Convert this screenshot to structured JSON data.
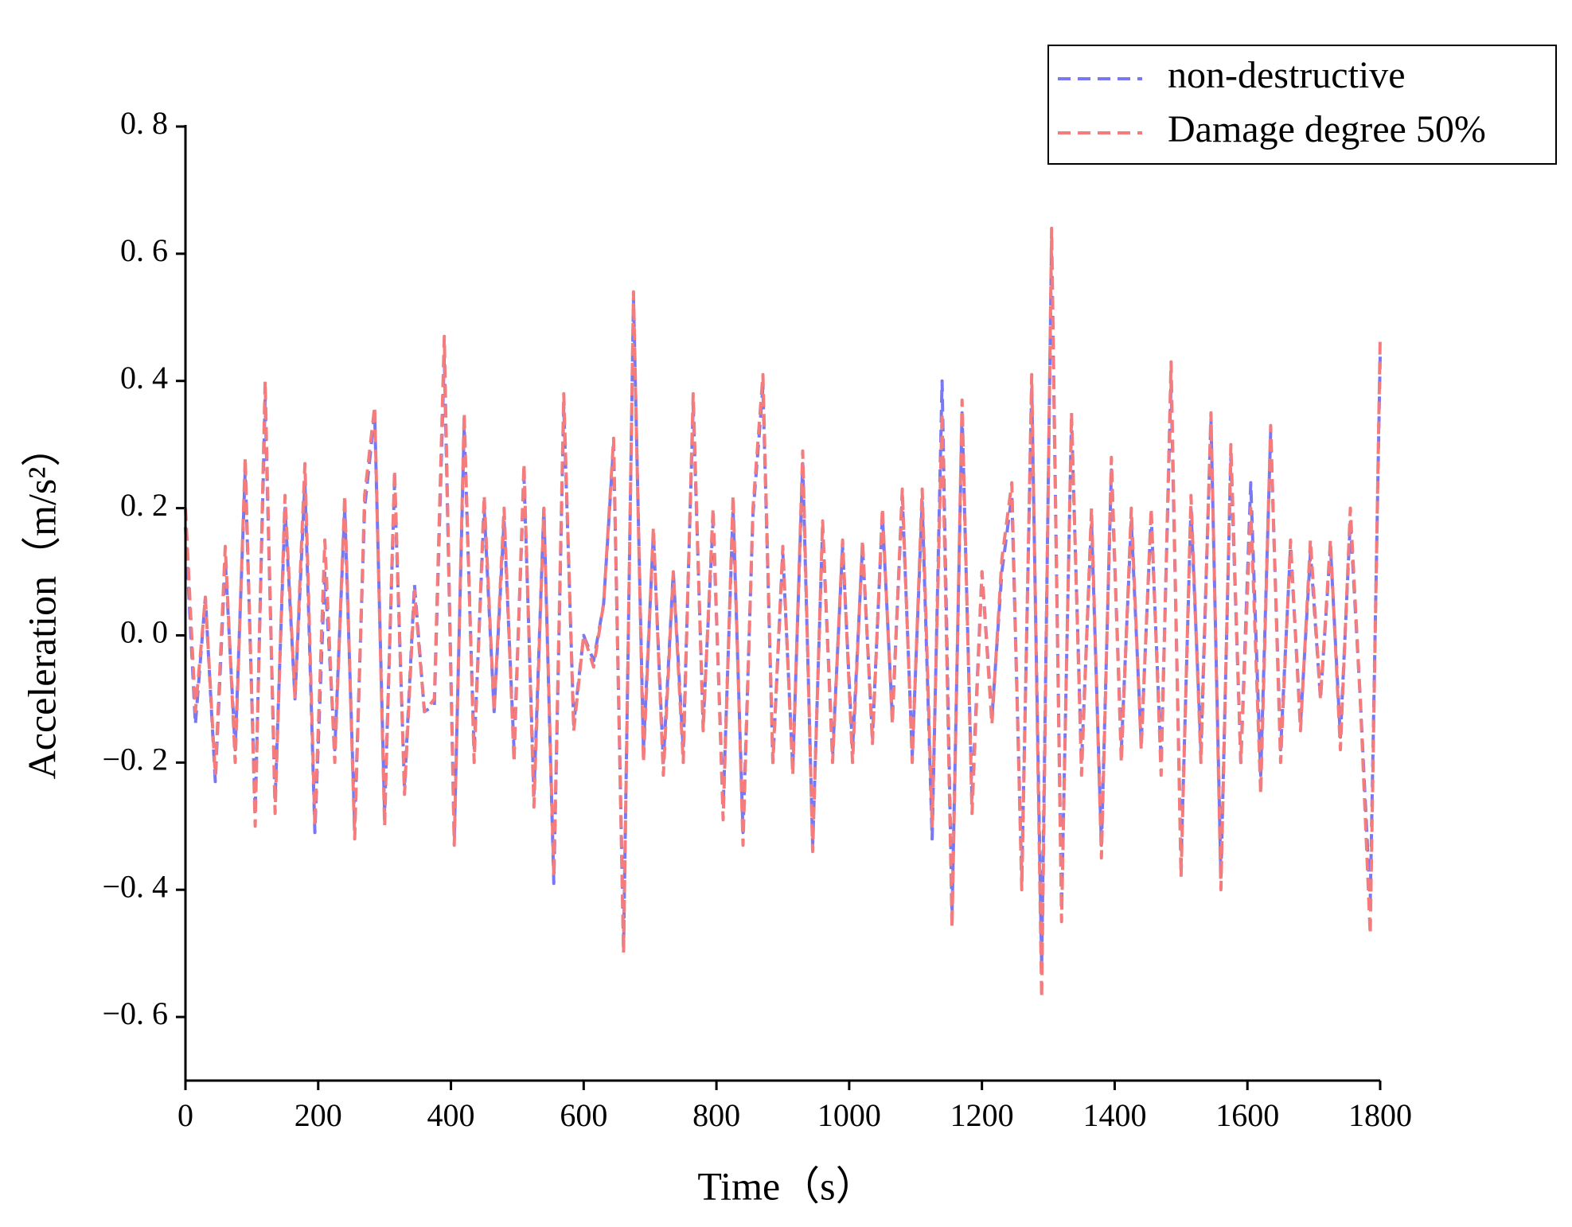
{
  "chart_data": {
    "type": "line",
    "xlabel": "Time（s）",
    "ylabel": "Acceleration（m/s²）",
    "x": [
      0,
      15,
      30,
      45,
      60,
      75,
      90,
      105,
      120,
      135,
      150,
      165,
      180,
      195,
      210,
      225,
      240,
      255,
      270,
      285,
      300,
      315,
      330,
      345,
      360,
      375,
      390,
      405,
      420,
      435,
      450,
      465,
      480,
      495,
      510,
      525,
      540,
      555,
      570,
      585,
      600,
      615,
      630,
      645,
      660,
      675,
      690,
      705,
      720,
      735,
      750,
      765,
      780,
      795,
      810,
      825,
      840,
      855,
      870,
      885,
      900,
      915,
      930,
      945,
      960,
      975,
      990,
      1005,
      1020,
      1035,
      1050,
      1065,
      1080,
      1095,
      1110,
      1125,
      1140,
      1155,
      1170,
      1185,
      1200,
      1215,
      1230,
      1245,
      1260,
      1275,
      1290,
      1305,
      1320,
      1335,
      1350,
      1365,
      1380,
      1395,
      1410,
      1425,
      1440,
      1455,
      1470,
      1485,
      1500,
      1515,
      1530,
      1545,
      1560,
      1575,
      1590,
      1605,
      1620,
      1635,
      1650,
      1665,
      1680,
      1695,
      1710,
      1725,
      1740,
      1755,
      1770,
      1785,
      1800
    ],
    "series": [
      {
        "name": "non-destructive",
        "color": "#7878f5",
        "values": [
          0.17,
          -0.14,
          0.06,
          -0.23,
          0.12,
          -0.18,
          0.26,
          -0.28,
          0.37,
          -0.26,
          0.2,
          -0.1,
          0.24,
          -0.31,
          0.1,
          -0.18,
          0.2,
          -0.3,
          0.2,
          0.35,
          -0.28,
          0.24,
          -0.24,
          0.08,
          -0.12,
          -0.11,
          0.44,
          -0.32,
          0.33,
          -0.18,
          0.2,
          -0.12,
          0.18,
          -0.18,
          0.25,
          -0.25,
          0.2,
          -0.39,
          0.36,
          -0.14,
          0.0,
          -0.04,
          0.05,
          0.3,
          -0.49,
          0.53,
          -0.18,
          0.16,
          -0.2,
          0.1,
          -0.18,
          0.36,
          -0.14,
          0.18,
          -0.27,
          0.2,
          -0.31,
          0.19,
          0.39,
          -0.2,
          0.13,
          -0.21,
          0.27,
          -0.33,
          0.17,
          -0.19,
          0.14,
          -0.18,
          0.14,
          -0.16,
          0.19,
          -0.13,
          0.22,
          -0.19,
          0.21,
          -0.32,
          0.4,
          -0.44,
          0.35,
          -0.26,
          0.1,
          -0.13,
          0.1,
          0.22,
          -0.38,
          0.39,
          -0.52,
          0.62,
          -0.43,
          0.34,
          -0.2,
          0.18,
          -0.33,
          0.26,
          -0.18,
          0.18,
          -0.17,
          0.19,
          -0.2,
          0.4,
          -0.36,
          0.2,
          -0.18,
          0.34,
          -0.38,
          0.28,
          -0.2,
          0.24,
          -0.22,
          0.32,
          -0.18,
          0.14,
          -0.14,
          0.13,
          -0.1,
          0.14,
          -0.16,
          0.18,
          -0.1,
          -0.42,
          0.44
        ]
      },
      {
        "name": "Damage degree 50%",
        "color": "#f47c7c",
        "values": [
          0.2,
          -0.12,
          0.06,
          -0.22,
          0.14,
          -0.2,
          0.28,
          -0.3,
          0.4,
          -0.28,
          0.22,
          -0.1,
          0.27,
          -0.3,
          0.15,
          -0.2,
          0.22,
          -0.32,
          0.22,
          0.36,
          -0.3,
          0.26,
          -0.25,
          0.07,
          -0.12,
          -0.1,
          0.47,
          -0.33,
          0.35,
          -0.2,
          0.22,
          -0.12,
          0.2,
          -0.2,
          0.27,
          -0.27,
          0.2,
          -0.38,
          0.38,
          -0.15,
          0.0,
          -0.05,
          0.05,
          0.31,
          -0.5,
          0.54,
          -0.2,
          0.17,
          -0.22,
          0.1,
          -0.2,
          0.38,
          -0.15,
          0.2,
          -0.29,
          0.22,
          -0.33,
          0.2,
          0.41,
          -0.2,
          0.14,
          -0.22,
          0.29,
          -0.34,
          0.18,
          -0.2,
          0.15,
          -0.2,
          0.15,
          -0.17,
          0.2,
          -0.14,
          0.23,
          -0.2,
          0.23,
          -0.3,
          0.35,
          -0.46,
          0.37,
          -0.28,
          0.1,
          -0.14,
          0.12,
          0.24,
          -0.4,
          0.41,
          -0.57,
          0.64,
          -0.45,
          0.35,
          -0.22,
          0.2,
          -0.35,
          0.28,
          -0.2,
          0.2,
          -0.18,
          0.2,
          -0.22,
          0.43,
          -0.38,
          0.22,
          -0.2,
          0.35,
          -0.4,
          0.3,
          -0.2,
          0.2,
          -0.25,
          0.33,
          -0.2,
          0.15,
          -0.15,
          0.15,
          -0.1,
          0.15,
          -0.18,
          0.2,
          -0.1,
          -0.47,
          0.47
        ]
      }
    ],
    "xlim": [
      0,
      1800
    ],
    "xticks": [
      0,
      200,
      400,
      600,
      800,
      1000,
      1200,
      1400,
      1600,
      1800
    ],
    "ylim": [
      -0.7,
      0.8
    ],
    "yticks": [
      {
        "value": -0.6,
        "label": "−0. 6"
      },
      {
        "value": -0.4,
        "label": "−0. 4"
      },
      {
        "value": -0.2,
        "label": "−0. 2"
      },
      {
        "value": 0,
        "label": "0. 0"
      },
      {
        "value": 0.2,
        "label": "0. 2"
      },
      {
        "value": 0.4,
        "label": "0. 4"
      },
      {
        "value": 0.6,
        "label": "0. 6"
      },
      {
        "value": 0.8,
        "label": "0. 8"
      }
    ],
    "legend": "top-right"
  }
}
